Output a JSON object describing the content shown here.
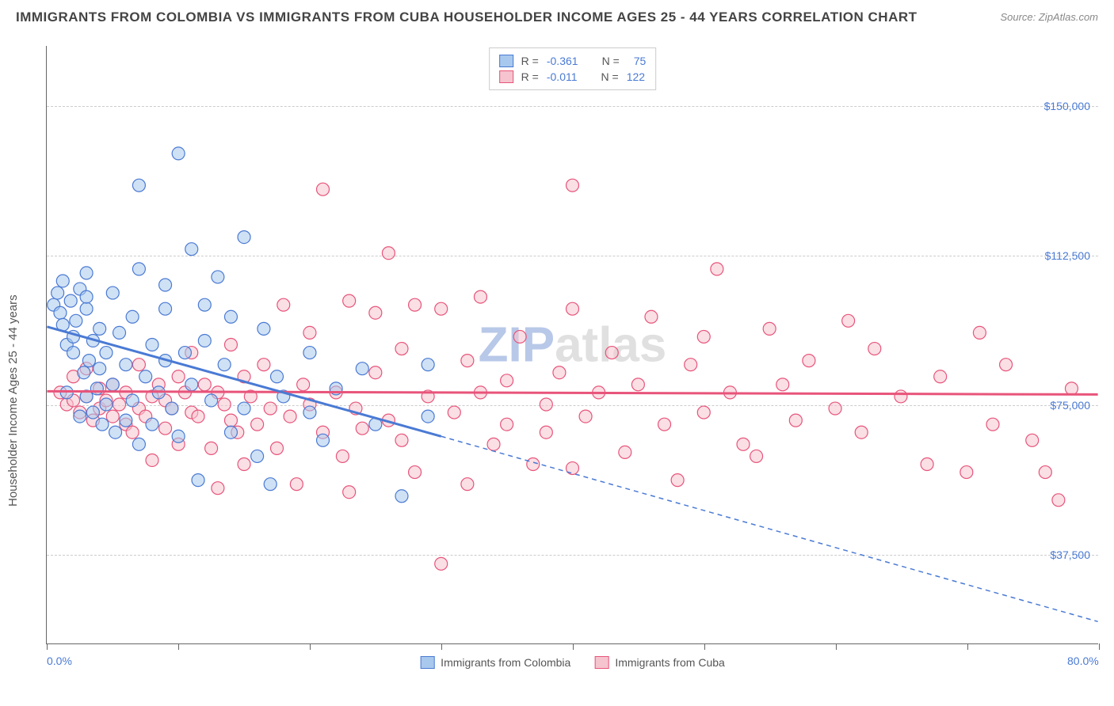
{
  "title": "IMMIGRANTS FROM COLOMBIA VS IMMIGRANTS FROM CUBA HOUSEHOLDER INCOME AGES 25 - 44 YEARS CORRELATION CHART",
  "source": "Source: ZipAtlas.com",
  "ylabel": "Householder Income Ages 25 - 44 years",
  "watermark_a": "ZIP",
  "watermark_b": "atlas",
  "xlim": [
    0,
    80
  ],
  "ylim": [
    15000,
    165000
  ],
  "x_ticks": [
    0,
    10,
    20,
    30,
    40,
    50,
    60,
    70,
    80
  ],
  "x_tick_labels_shown": {
    "0": "0.0%",
    "80": "80.0%"
  },
  "y_grid": [
    37500,
    75000,
    112500,
    150000
  ],
  "y_labels": [
    "$37,500",
    "$75,000",
    "$112,500",
    "$150,000"
  ],
  "series": {
    "colombia": {
      "label": "Immigrants from Colombia",
      "fill": "#a8c8ed",
      "stroke": "#4a7ad4",
      "fill_opacity": 0.55,
      "r_value": "-0.361",
      "n_value": "75",
      "reg_start": [
        0,
        94500
      ],
      "reg_solid_end": [
        30,
        67000
      ],
      "reg_dash_end": [
        80,
        20500
      ],
      "points": [
        [
          0.5,
          100000
        ],
        [
          0.8,
          103000
        ],
        [
          1,
          98000
        ],
        [
          1.2,
          95000
        ],
        [
          1.2,
          106000
        ],
        [
          1.5,
          90000
        ],
        [
          1.5,
          78000
        ],
        [
          1.8,
          101000
        ],
        [
          2,
          88000
        ],
        [
          2,
          92000
        ],
        [
          2.2,
          96000
        ],
        [
          2.5,
          72000
        ],
        [
          2.5,
          104000
        ],
        [
          2.8,
          83000
        ],
        [
          3,
          77000
        ],
        [
          3,
          99000
        ],
        [
          3,
          102000
        ],
        [
          3.2,
          86000
        ],
        [
          3.5,
          91000
        ],
        [
          3.5,
          73000
        ],
        [
          3.8,
          79000
        ],
        [
          4,
          84000
        ],
        [
          4,
          94000
        ],
        [
          4.2,
          70000
        ],
        [
          4.5,
          88000
        ],
        [
          4.5,
          75000
        ],
        [
          5,
          80000
        ],
        [
          5,
          103000
        ],
        [
          5.2,
          68000
        ],
        [
          5.5,
          93000
        ],
        [
          6,
          71000
        ],
        [
          6,
          85000
        ],
        [
          6.5,
          97000
        ],
        [
          6.5,
          76000
        ],
        [
          7,
          65000
        ],
        [
          7,
          109000
        ],
        [
          7.5,
          82000
        ],
        [
          8,
          90000
        ],
        [
          8,
          70000
        ],
        [
          8.5,
          78000
        ],
        [
          9,
          86000
        ],
        [
          9,
          99000
        ],
        [
          9.5,
          74000
        ],
        [
          10,
          67000
        ],
        [
          10,
          138000
        ],
        [
          10.5,
          88000
        ],
        [
          11,
          80000
        ],
        [
          11,
          114000
        ],
        [
          11.5,
          56000
        ],
        [
          12,
          91000
        ],
        [
          12.5,
          76000
        ],
        [
          13,
          107000
        ],
        [
          13.5,
          85000
        ],
        [
          14,
          68000
        ],
        [
          15,
          74000
        ],
        [
          15,
          117000
        ],
        [
          16,
          62000
        ],
        [
          16.5,
          94000
        ],
        [
          17,
          55000
        ],
        [
          17.5,
          82000
        ],
        [
          18,
          77000
        ],
        [
          20,
          73000
        ],
        [
          20,
          88000
        ],
        [
          21,
          66000
        ],
        [
          22,
          79000
        ],
        [
          24,
          84000
        ],
        [
          25,
          70000
        ],
        [
          27,
          52000
        ],
        [
          29,
          85000
        ],
        [
          29,
          72000
        ],
        [
          7,
          130000
        ],
        [
          3,
          108000
        ],
        [
          12,
          100000
        ],
        [
          9,
          105000
        ],
        [
          14,
          97000
        ]
      ]
    },
    "cuba": {
      "label": "Immigrants from Cuba",
      "fill": "#f5c4cf",
      "stroke": "#e8547a",
      "fill_opacity": 0.55,
      "r_value": "-0.011",
      "n_value": "122",
      "reg_start": [
        0,
        78300
      ],
      "reg_solid_end": [
        80,
        77500
      ],
      "reg_dash_end": null,
      "points": [
        [
          1,
          78000
        ],
        [
          1.5,
          75000
        ],
        [
          2,
          76000
        ],
        [
          2,
          82000
        ],
        [
          2.5,
          73000
        ],
        [
          3,
          77000
        ],
        [
          3,
          84000
        ],
        [
          3.5,
          71000
        ],
        [
          4,
          79000
        ],
        [
          4,
          74000
        ],
        [
          4.5,
          76000
        ],
        [
          5,
          72000
        ],
        [
          5,
          80000
        ],
        [
          5.5,
          75000
        ],
        [
          6,
          78000
        ],
        [
          6,
          70000
        ],
        [
          6.5,
          68000
        ],
        [
          7,
          74000
        ],
        [
          7,
          85000
        ],
        [
          7.5,
          72000
        ],
        [
          8,
          77000
        ],
        [
          8,
          61000
        ],
        [
          8.5,
          80000
        ],
        [
          9,
          69000
        ],
        [
          9,
          76000
        ],
        [
          9.5,
          74000
        ],
        [
          10,
          82000
        ],
        [
          10,
          65000
        ],
        [
          10.5,
          78000
        ],
        [
          11,
          73000
        ],
        [
          11,
          88000
        ],
        [
          11.5,
          72000
        ],
        [
          12,
          80000
        ],
        [
          12.5,
          64000
        ],
        [
          13,
          78000
        ],
        [
          13,
          54000
        ],
        [
          13.5,
          75000
        ],
        [
          14,
          71000
        ],
        [
          14,
          90000
        ],
        [
          14.5,
          68000
        ],
        [
          15,
          82000
        ],
        [
          15,
          60000
        ],
        [
          15.5,
          77000
        ],
        [
          16,
          70000
        ],
        [
          16.5,
          85000
        ],
        [
          17,
          74000
        ],
        [
          17.5,
          64000
        ],
        [
          18,
          100000
        ],
        [
          18.5,
          72000
        ],
        [
          19,
          55000
        ],
        [
          19.5,
          80000
        ],
        [
          20,
          75000
        ],
        [
          20,
          93000
        ],
        [
          21,
          68000
        ],
        [
          21,
          129000
        ],
        [
          22,
          78000
        ],
        [
          22.5,
          62000
        ],
        [
          23,
          53000
        ],
        [
          23,
          101000
        ],
        [
          23.5,
          74000
        ],
        [
          24,
          69000
        ],
        [
          25,
          83000
        ],
        [
          25,
          98000
        ],
        [
          26,
          71000
        ],
        [
          26,
          113000
        ],
        [
          27,
          66000
        ],
        [
          27,
          89000
        ],
        [
          28,
          100000
        ],
        [
          28,
          58000
        ],
        [
          29,
          77000
        ],
        [
          30,
          35000
        ],
        [
          30,
          99000
        ],
        [
          31,
          73000
        ],
        [
          32,
          55000
        ],
        [
          32,
          86000
        ],
        [
          33,
          78000
        ],
        [
          33,
          102000
        ],
        [
          34,
          65000
        ],
        [
          35,
          81000
        ],
        [
          35,
          70000
        ],
        [
          36,
          92000
        ],
        [
          37,
          60000
        ],
        [
          38,
          75000
        ],
        [
          38,
          68000
        ],
        [
          39,
          83000
        ],
        [
          40,
          59000
        ],
        [
          40,
          99000
        ],
        [
          40,
          130000
        ],
        [
          41,
          72000
        ],
        [
          42,
          78000
        ],
        [
          43,
          88000
        ],
        [
          44,
          63000
        ],
        [
          45,
          80000
        ],
        [
          46,
          97000
        ],
        [
          47,
          70000
        ],
        [
          48,
          56000
        ],
        [
          49,
          85000
        ],
        [
          50,
          92000
        ],
        [
          50,
          73000
        ],
        [
          51,
          109000
        ],
        [
          52,
          78000
        ],
        [
          53,
          65000
        ],
        [
          54,
          62000
        ],
        [
          55,
          94000
        ],
        [
          56,
          80000
        ],
        [
          57,
          71000
        ],
        [
          58,
          86000
        ],
        [
          60,
          74000
        ],
        [
          61,
          96000
        ],
        [
          62,
          68000
        ],
        [
          63,
          89000
        ],
        [
          65,
          77000
        ],
        [
          67,
          60000
        ],
        [
          68,
          82000
        ],
        [
          70,
          58000
        ],
        [
          71,
          93000
        ],
        [
          72,
          70000
        ],
        [
          73,
          85000
        ],
        [
          75,
          66000
        ],
        [
          76,
          58000
        ],
        [
          77,
          51000
        ],
        [
          78,
          79000
        ]
      ]
    }
  },
  "legend_r_label": "R =",
  "legend_n_label": "N =",
  "marker_radius": 8,
  "line_width_solid": 3,
  "line_width_dash": 1.5
}
